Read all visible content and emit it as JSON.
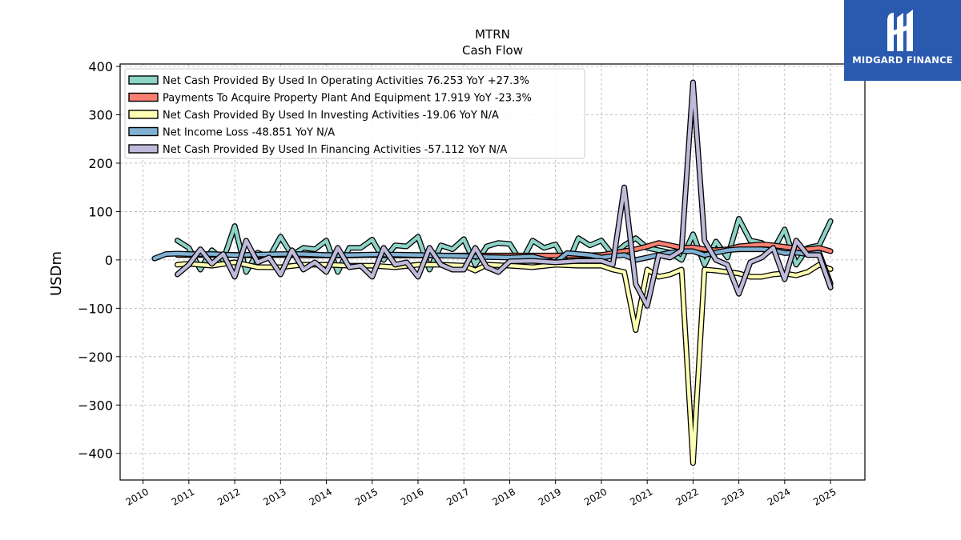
{
  "brand": {
    "name": "MIDGARD FINANCE",
    "bg_color": "#2a59b0"
  },
  "chart_data": {
    "type": "line",
    "title": "MTRN",
    "subtitle": "Cash Flow",
    "xlabel": "",
    "ylabel": "USDm",
    "xlim": [
      2009.5,
      2025.75
    ],
    "ylim": [
      -455,
      405
    ],
    "yticks": [
      400,
      300,
      200,
      100,
      0,
      -100,
      -200,
      -300,
      -400
    ],
    "ytick_labels": [
      "400",
      "300",
      "200",
      "100",
      "0",
      "−100",
      "−200",
      "−300",
      "−400"
    ],
    "xticks": [
      2010,
      2011,
      2012,
      2013,
      2014,
      2015,
      2016,
      2017,
      2018,
      2019,
      2020,
      2021,
      2022,
      2023,
      2024,
      2025
    ],
    "xtick_labels": [
      "2010",
      "2011",
      "2012",
      "2013",
      "2014",
      "2015",
      "2016",
      "2017",
      "2018",
      "2019",
      "2020",
      "2021",
      "2022",
      "2023",
      "2024",
      "2025"
    ],
    "grid": true,
    "legend_position": "top-left",
    "series": [
      {
        "name": "Net Cash Provided By Used In Operating Activities",
        "legend_label": "Net Cash Provided By Used In Operating Activities  76.253 YoY +27.3%",
        "color": "#8dd3c7",
        "points": [
          [
            2010.75,
            40
          ],
          [
            2011,
            25
          ],
          [
            2011.25,
            -20
          ],
          [
            2011.5,
            20
          ],
          [
            2011.75,
            0
          ],
          [
            2012,
            70
          ],
          [
            2012.25,
            -25
          ],
          [
            2012.5,
            15
          ],
          [
            2012.75,
            5
          ],
          [
            2013,
            48
          ],
          [
            2013.25,
            10
          ],
          [
            2013.5,
            25
          ],
          [
            2013.75,
            22
          ],
          [
            2014,
            40
          ],
          [
            2014.25,
            -25
          ],
          [
            2014.5,
            25
          ],
          [
            2014.75,
            25
          ],
          [
            2015,
            42
          ],
          [
            2015.25,
            0
          ],
          [
            2015.5,
            30
          ],
          [
            2015.75,
            28
          ],
          [
            2016,
            48
          ],
          [
            2016.25,
            -20
          ],
          [
            2016.5,
            30
          ],
          [
            2016.75,
            22
          ],
          [
            2017,
            43
          ],
          [
            2017.25,
            -10
          ],
          [
            2017.5,
            28
          ],
          [
            2017.75,
            35
          ],
          [
            2018,
            33
          ],
          [
            2018.25,
            -5
          ],
          [
            2018.5,
            40
          ],
          [
            2018.75,
            25
          ],
          [
            2019,
            32
          ],
          [
            2019.25,
            -10
          ],
          [
            2019.5,
            45
          ],
          [
            2019.75,
            30
          ],
          [
            2020,
            40
          ],
          [
            2020.25,
            10
          ],
          [
            2020.5,
            30
          ],
          [
            2020.75,
            45
          ],
          [
            2021,
            25
          ],
          [
            2021.25,
            20
          ],
          [
            2021.5,
            15
          ],
          [
            2021.75,
            0
          ],
          [
            2022,
            53
          ],
          [
            2022.25,
            -10
          ],
          [
            2022.5,
            38
          ],
          [
            2022.75,
            5
          ],
          [
            2023,
            85
          ],
          [
            2023.25,
            40
          ],
          [
            2023.5,
            35
          ],
          [
            2023.75,
            20
          ],
          [
            2024,
            63
          ],
          [
            2024.25,
            -10
          ],
          [
            2024.5,
            25
          ],
          [
            2024.75,
            30
          ],
          [
            2025,
            80
          ]
        ]
      },
      {
        "name": "Payments To Acquire Property Plant And Equipment",
        "legend_label": "Payments To Acquire Property Plant And Equipment  17.919 YoY -23.3%",
        "color": "#fb8072",
        "points": [
          [
            2010.75,
            10
          ],
          [
            2011,
            10
          ],
          [
            2011.5,
            10
          ],
          [
            2012,
            10
          ],
          [
            2012.5,
            9
          ],
          [
            2013,
            10
          ],
          [
            2013.5,
            9
          ],
          [
            2014,
            9
          ],
          [
            2014.5,
            9
          ],
          [
            2015,
            10
          ],
          [
            2015.5,
            9
          ],
          [
            2016,
            9
          ],
          [
            2016.5,
            9
          ],
          [
            2017,
            9
          ],
          [
            2017.5,
            9
          ],
          [
            2018,
            9
          ],
          [
            2018.5,
            9
          ],
          [
            2019,
            9
          ],
          [
            2019.5,
            9
          ],
          [
            2020,
            10
          ],
          [
            2020.25,
            14
          ],
          [
            2020.5,
            18
          ],
          [
            2020.75,
            22
          ],
          [
            2021,
            28
          ],
          [
            2021.25,
            35
          ],
          [
            2021.5,
            30
          ],
          [
            2021.75,
            25
          ],
          [
            2022,
            26
          ],
          [
            2022.25,
            22
          ],
          [
            2022.5,
            20
          ],
          [
            2022.75,
            22
          ],
          [
            2023,
            28
          ],
          [
            2023.25,
            30
          ],
          [
            2023.5,
            32
          ],
          [
            2023.75,
            30
          ],
          [
            2024,
            27
          ],
          [
            2024.25,
            24
          ],
          [
            2024.5,
            22
          ],
          [
            2024.75,
            25
          ],
          [
            2025,
            18
          ]
        ]
      },
      {
        "name": "Net Cash Provided By Used In Investing Activities",
        "legend_label": "Net Cash Provided By Used In Investing Activities  -19.06 YoY N/A",
        "color": "#ffffb3",
        "points": [
          [
            2010.75,
            -10
          ],
          [
            2011,
            -8
          ],
          [
            2011.5,
            -12
          ],
          [
            2012,
            -5
          ],
          [
            2012.5,
            -15
          ],
          [
            2013,
            -15
          ],
          [
            2013.5,
            -10
          ],
          [
            2014,
            -10
          ],
          [
            2014.5,
            -12
          ],
          [
            2015,
            -12
          ],
          [
            2015.5,
            -15
          ],
          [
            2016,
            -10
          ],
          [
            2016.5,
            -10
          ],
          [
            2017,
            -12
          ],
          [
            2017.25,
            -22
          ],
          [
            2017.5,
            -10
          ],
          [
            2018,
            -12
          ],
          [
            2018.5,
            -15
          ],
          [
            2019,
            -10
          ],
          [
            2019.5,
            -12
          ],
          [
            2020,
            -12
          ],
          [
            2020.25,
            -20
          ],
          [
            2020.5,
            -25
          ],
          [
            2020.75,
            -145
          ],
          [
            2021,
            -20
          ],
          [
            2021.25,
            -35
          ],
          [
            2021.5,
            -30
          ],
          [
            2021.75,
            -20
          ],
          [
            2022,
            -420
          ],
          [
            2022.25,
            -20
          ],
          [
            2022.5,
            -22
          ],
          [
            2022.75,
            -25
          ],
          [
            2023,
            -28
          ],
          [
            2023.25,
            -35
          ],
          [
            2023.5,
            -35
          ],
          [
            2023.75,
            -30
          ],
          [
            2024,
            -28
          ],
          [
            2024.25,
            -32
          ],
          [
            2024.5,
            -25
          ],
          [
            2024.75,
            -10
          ],
          [
            2025,
            -19
          ]
        ]
      },
      {
        "name": "Net Income Loss",
        "legend_label": "Net Income Loss  -48.851 YoY N/A",
        "color": "#80b1d3",
        "points": [
          [
            2010.25,
            3
          ],
          [
            2010.5,
            12
          ],
          [
            2010.75,
            13
          ],
          [
            2011,
            12
          ],
          [
            2011.5,
            12
          ],
          [
            2012,
            10
          ],
          [
            2012.5,
            11
          ],
          [
            2013,
            12
          ],
          [
            2013.5,
            12
          ],
          [
            2014,
            10
          ],
          [
            2014.5,
            10
          ],
          [
            2015,
            11
          ],
          [
            2015.5,
            11
          ],
          [
            2016,
            10
          ],
          [
            2016.5,
            9
          ],
          [
            2017,
            8
          ],
          [
            2017.5,
            6
          ],
          [
            2018,
            5
          ],
          [
            2018.5,
            7
          ],
          [
            2019,
            -5
          ],
          [
            2019.25,
            14
          ],
          [
            2019.5,
            12
          ],
          [
            2019.75,
            10
          ],
          [
            2020,
            5
          ],
          [
            2020.25,
            8
          ],
          [
            2020.5,
            10
          ],
          [
            2020.75,
            0
          ],
          [
            2021,
            5
          ],
          [
            2021.25,
            10
          ],
          [
            2021.5,
            15
          ],
          [
            2021.75,
            18
          ],
          [
            2022,
            18
          ],
          [
            2022.25,
            10
          ],
          [
            2022.5,
            15
          ],
          [
            2022.75,
            20
          ],
          [
            2023,
            22
          ],
          [
            2023.25,
            22
          ],
          [
            2023.5,
            22
          ],
          [
            2023.75,
            20
          ],
          [
            2024,
            14
          ],
          [
            2024.25,
            15
          ],
          [
            2024.5,
            12
          ],
          [
            2024.75,
            15
          ],
          [
            2025,
            -49
          ]
        ]
      },
      {
        "name": "Net Cash Provided By Used In Financing Activities",
        "legend_label": "Net Cash Provided By Used In Financing Activities  -57.112 YoY N/A",
        "color": "#bebada",
        "points": [
          [
            2010.75,
            -30
          ],
          [
            2011,
            -10
          ],
          [
            2011.25,
            22
          ],
          [
            2011.5,
            -8
          ],
          [
            2011.75,
            12
          ],
          [
            2012,
            -35
          ],
          [
            2012.25,
            40
          ],
          [
            2012.5,
            -5
          ],
          [
            2012.75,
            5
          ],
          [
            2013,
            -30
          ],
          [
            2013.25,
            20
          ],
          [
            2013.5,
            -20
          ],
          [
            2013.75,
            -5
          ],
          [
            2014,
            -25
          ],
          [
            2014.25,
            25
          ],
          [
            2014.5,
            -15
          ],
          [
            2014.75,
            -12
          ],
          [
            2015,
            -35
          ],
          [
            2015.25,
            25
          ],
          [
            2015.5,
            -10
          ],
          [
            2015.75,
            -5
          ],
          [
            2016,
            -35
          ],
          [
            2016.25,
            25
          ],
          [
            2016.5,
            -10
          ],
          [
            2016.75,
            -20
          ],
          [
            2017,
            -20
          ],
          [
            2017.25,
            25
          ],
          [
            2017.5,
            -15
          ],
          [
            2017.75,
            -25
          ],
          [
            2018,
            -3
          ],
          [
            2018.5,
            -2
          ],
          [
            2019,
            -5
          ],
          [
            2019.5,
            -2
          ],
          [
            2020,
            -2
          ],
          [
            2020.25,
            -10
          ],
          [
            2020.5,
            150
          ],
          [
            2020.75,
            -50
          ],
          [
            2021,
            -95
          ],
          [
            2021.25,
            10
          ],
          [
            2021.5,
            5
          ],
          [
            2021.75,
            20
          ],
          [
            2022,
            367
          ],
          [
            2022.25,
            40
          ],
          [
            2022.5,
            0
          ],
          [
            2022.75,
            -10
          ],
          [
            2023,
            -70
          ],
          [
            2023.25,
            -5
          ],
          [
            2023.5,
            5
          ],
          [
            2023.75,
            25
          ],
          [
            2024,
            -40
          ],
          [
            2024.25,
            40
          ],
          [
            2024.5,
            10
          ],
          [
            2024.75,
            10
          ],
          [
            2025,
            -57
          ]
        ]
      }
    ]
  }
}
